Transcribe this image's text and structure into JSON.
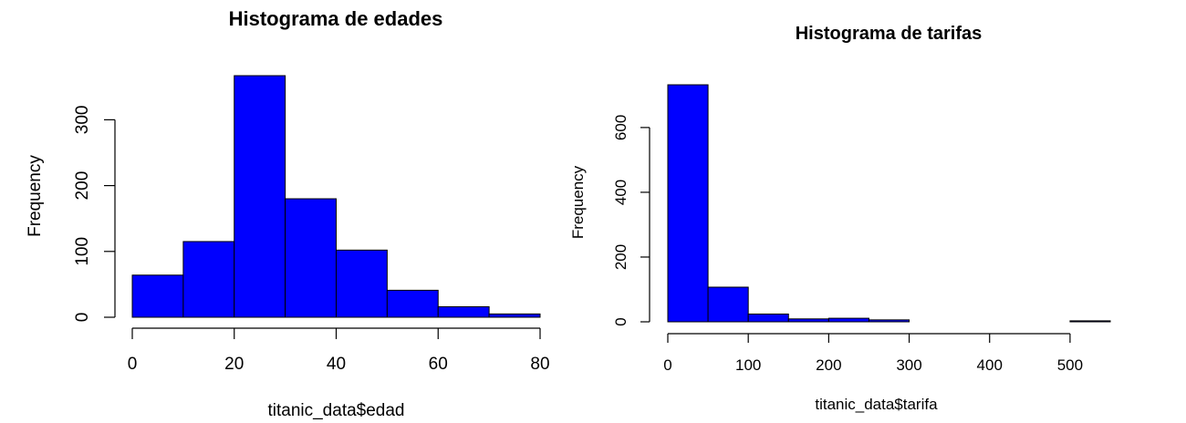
{
  "chart_data": [
    {
      "type": "bar",
      "title": "Histograma de edades",
      "xlabel": "titanic_data$edad",
      "ylabel": "Frequency",
      "bins": [
        [
          0,
          10
        ],
        [
          10,
          20
        ],
        [
          20,
          30
        ],
        [
          30,
          40
        ],
        [
          40,
          50
        ],
        [
          50,
          60
        ],
        [
          60,
          70
        ],
        [
          70,
          80
        ]
      ],
      "values": [
        64,
        115,
        367,
        180,
        102,
        41,
        16,
        5
      ],
      "xlim": [
        0,
        80
      ],
      "ylim": [
        0,
        367
      ],
      "xticks": [
        0,
        20,
        40,
        60,
        80
      ],
      "yticks": [
        0,
        100,
        200,
        300
      ],
      "bar_color": "#0000ff",
      "grid": false
    },
    {
      "type": "bar",
      "title": "Histograma de tarifas",
      "xlabel": "titanic_data$tarifa",
      "ylabel": "Frequency",
      "bins": [
        [
          0,
          50
        ],
        [
          50,
          100
        ],
        [
          100,
          150
        ],
        [
          150,
          200
        ],
        [
          200,
          250
        ],
        [
          250,
          300
        ],
        [
          300,
          350
        ],
        [
          350,
          400
        ],
        [
          400,
          450
        ],
        [
          450,
          500
        ],
        [
          500,
          550
        ]
      ],
      "values": [
        732,
        107,
        24,
        9,
        11,
        6,
        0,
        0,
        0,
        0,
        3
      ],
      "xlim": [
        0,
        550
      ],
      "ylim": [
        0,
        732
      ],
      "xticks": [
        0,
        100,
        200,
        300,
        400,
        500
      ],
      "yticks": [
        0,
        200,
        400,
        600
      ],
      "bar_color": "#0000ff",
      "grid": false
    }
  ]
}
